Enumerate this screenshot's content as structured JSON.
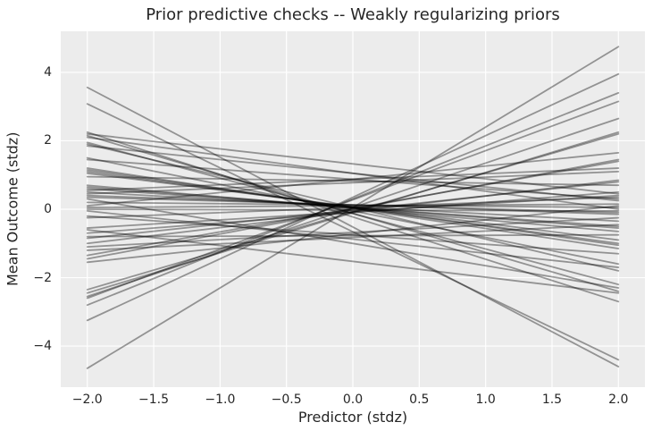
{
  "chart_data": {
    "type": "line",
    "title": "Prior predictive checks -- Weakly regularizing priors",
    "xlabel": "Predictor (stdz)",
    "ylabel": "Mean Outcome (stdz)",
    "xlim": [
      -2.2,
      2.2
    ],
    "ylim": [
      -5.2,
      5.2
    ],
    "x_ticks": [
      -2.0,
      -1.5,
      -1.0,
      -0.5,
      0.0,
      0.5,
      1.0,
      1.5,
      2.0
    ],
    "x_tick_labels": [
      "−2.0",
      "−1.5",
      "−1.0",
      "−0.5",
      "0.0",
      "0.5",
      "1.0",
      "1.5",
      "2.0"
    ],
    "y_ticks": [
      -4,
      -2,
      0,
      2,
      4
    ],
    "y_tick_labels": [
      "−4",
      "−2",
      "0",
      "2",
      "4"
    ],
    "grid": true,
    "legend_position": "none",
    "n_lines": 50,
    "x_endpoints": [
      -2.0,
      2.0
    ],
    "lines": [
      [
        3.56,
        -4.6
      ],
      [
        3.08,
        -4.4
      ],
      [
        2.25,
        -2.7
      ],
      [
        2.2,
        0.45
      ],
      [
        2.15,
        -2.4
      ],
      [
        2.1,
        0.0
      ],
      [
        1.95,
        -2.2
      ],
      [
        1.9,
        -1.8
      ],
      [
        1.85,
        0.25
      ],
      [
        1.5,
        -1.6
      ],
      [
        1.45,
        0.3
      ],
      [
        1.2,
        -1.15
      ],
      [
        1.15,
        -1.05
      ],
      [
        1.1,
        -1.0
      ],
      [
        1.05,
        -0.9
      ],
      [
        0.95,
        0.7
      ],
      [
        0.7,
        -0.65
      ],
      [
        0.65,
        -0.55
      ],
      [
        0.6,
        -0.5
      ],
      [
        0.55,
        1.2
      ],
      [
        0.5,
        -0.35
      ],
      [
        0.45,
        1.1
      ],
      [
        0.4,
        -0.15
      ],
      [
        0.35,
        -0.1
      ],
      [
        0.3,
        -2.3
      ],
      [
        0.2,
        0.05
      ],
      [
        0.1,
        1.65
      ],
      [
        0.05,
        0.15
      ],
      [
        -0.05,
        -1.7
      ],
      [
        -0.2,
        -1.3
      ],
      [
        -0.25,
        0.35
      ],
      [
        -0.55,
        0.4
      ],
      [
        -0.6,
        -2.45
      ],
      [
        -0.7,
        0.5
      ],
      [
        -0.8,
        -0.75
      ],
      [
        -0.85,
        0.8
      ],
      [
        -1.0,
        0.85
      ],
      [
        -1.1,
        -0.25
      ],
      [
        -1.2,
        -0.45
      ],
      [
        -1.35,
        1.4
      ],
      [
        -1.45,
        1.45
      ],
      [
        -1.55,
        0.1
      ],
      [
        -2.35,
        2.2
      ],
      [
        -2.45,
        2.25
      ],
      [
        -2.55,
        2.65
      ],
      [
        -2.6,
        3.15
      ],
      [
        -2.8,
        3.4
      ],
      [
        -3.25,
        3.95
      ],
      [
        -4.65,
        4.75
      ],
      [
        0.0,
        -0.05
      ]
    ],
    "style": {
      "figure_bg": "#ffffff",
      "plot_bg": "#ececec",
      "grid_color": "#ffffff",
      "line_color": "#000000",
      "line_alpha": 0.38,
      "line_width": 1.8,
      "text_color": "#262626"
    }
  }
}
